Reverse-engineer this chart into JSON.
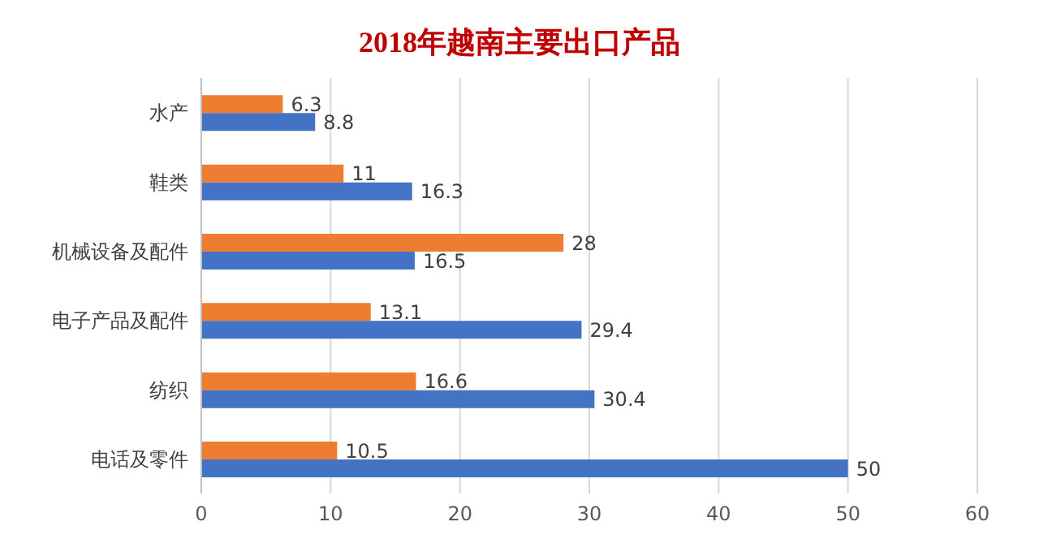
{
  "chart_data": {
    "type": "bar",
    "orientation": "horizontal",
    "title": "2018年越南主要出口产品",
    "categories": [
      "水产",
      "鞋类",
      "机械设备及配件",
      "电子产品及配件",
      "纺织",
      "电话及零件"
    ],
    "series": [
      {
        "color": "#ed7d31",
        "values": [
          6.3,
          11,
          28,
          13.1,
          16.6,
          10.5
        ]
      },
      {
        "color": "#4472c4",
        "values": [
          8.8,
          16.3,
          16.5,
          29.4,
          30.4,
          50
        ]
      }
    ],
    "xlim": [
      0,
      60
    ],
    "xticks": [
      0,
      10,
      20,
      30,
      40,
      50,
      60
    ],
    "grid": "x",
    "data_labels": true
  }
}
